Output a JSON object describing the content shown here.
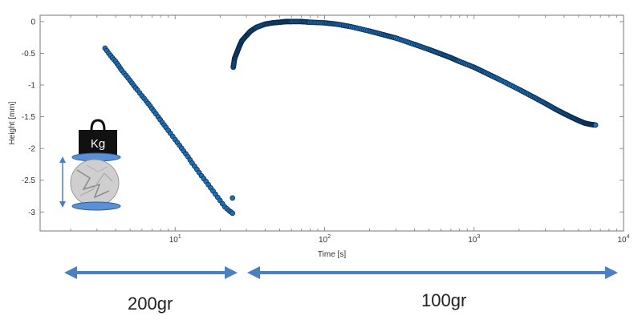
{
  "chart_data": {
    "type": "scatter",
    "title": "",
    "xlabel": "Time [s]",
    "ylabel": "Height [mm]",
    "xscale": "log",
    "xlim": [
      1.25,
      10000
    ],
    "ylim": [
      -3.3,
      0.1
    ],
    "x_ticks": [
      {
        "value": 10,
        "base": "10",
        "exp": "1"
      },
      {
        "value": 100,
        "base": "10",
        "exp": "2"
      },
      {
        "value": 1000,
        "base": "10",
        "exp": "3"
      },
      {
        "value": 10000,
        "base": "10",
        "exp": "4"
      }
    ],
    "y_ticks": [
      {
        "value": 0,
        "label": "0"
      },
      {
        "value": -0.5,
        "label": "-0.5"
      },
      {
        "value": -1,
        "label": "-1"
      },
      {
        "value": -1.5,
        "label": "-1.5"
      },
      {
        "value": -2,
        "label": "-2"
      },
      {
        "value": -2.5,
        "label": "-2.5"
      },
      {
        "value": -3,
        "label": "-3"
      }
    ],
    "grid": false,
    "series": [
      {
        "color": "#1f6fb5",
        "x": [
          3.4,
          3.6,
          3.8,
          4.0,
          4.2,
          4.4,
          4.7,
          5.0,
          5.3,
          5.6,
          6.0,
          6.4,
          6.8,
          7.2,
          7.7,
          8.2,
          8.7,
          9.3,
          10.0,
          10.7,
          11.4,
          12.2,
          13.0,
          14.0,
          15.0,
          16.1,
          17.3,
          18.6,
          20.0,
          21.5,
          23.0,
          24.2
        ],
        "y": [
          -0.42,
          -0.5,
          -0.57,
          -0.63,
          -0.7,
          -0.77,
          -0.85,
          -0.93,
          -1.01,
          -1.08,
          -1.17,
          -1.25,
          -1.33,
          -1.41,
          -1.5,
          -1.59,
          -1.67,
          -1.76,
          -1.86,
          -1.95,
          -2.04,
          -2.13,
          -2.23,
          -2.33,
          -2.43,
          -2.52,
          -2.62,
          -2.72,
          -2.82,
          -2.92,
          -2.98,
          -3.02
        ]
      },
      {
        "color": "#1f6fb5",
        "x": [
          24.5,
          25,
          26,
          27,
          28,
          30,
          32,
          35,
          40,
          45,
          50,
          55,
          60,
          70,
          80,
          100,
          120,
          150,
          200,
          250,
          300,
          400,
          500,
          600,
          700,
          800,
          1000,
          1200,
          1500,
          2000,
          2500,
          3000,
          3500,
          4000,
          4500,
          5000,
          5500,
          6000,
          6500
        ],
        "y": [
          -0.72,
          -0.58,
          -0.48,
          -0.38,
          -0.3,
          -0.22,
          -0.15,
          -0.09,
          -0.04,
          -0.02,
          -0.01,
          0.0,
          0.0,
          0.0,
          -0.01,
          -0.02,
          -0.04,
          -0.08,
          -0.15,
          -0.21,
          -0.26,
          -0.36,
          -0.44,
          -0.51,
          -0.57,
          -0.63,
          -0.72,
          -0.81,
          -0.92,
          -1.07,
          -1.19,
          -1.29,
          -1.38,
          -1.45,
          -1.51,
          -1.56,
          -1.6,
          -1.62,
          -1.63
        ]
      }
    ],
    "outlier_points": [
      {
        "x": 24.2,
        "y": -2.78
      }
    ]
  },
  "annotations": {
    "label_200": "200gr",
    "label_100": "100gr",
    "weight_text": "Kg",
    "arrow_color": "#4a7fc1",
    "plate_color": "#5b8fd6"
  }
}
